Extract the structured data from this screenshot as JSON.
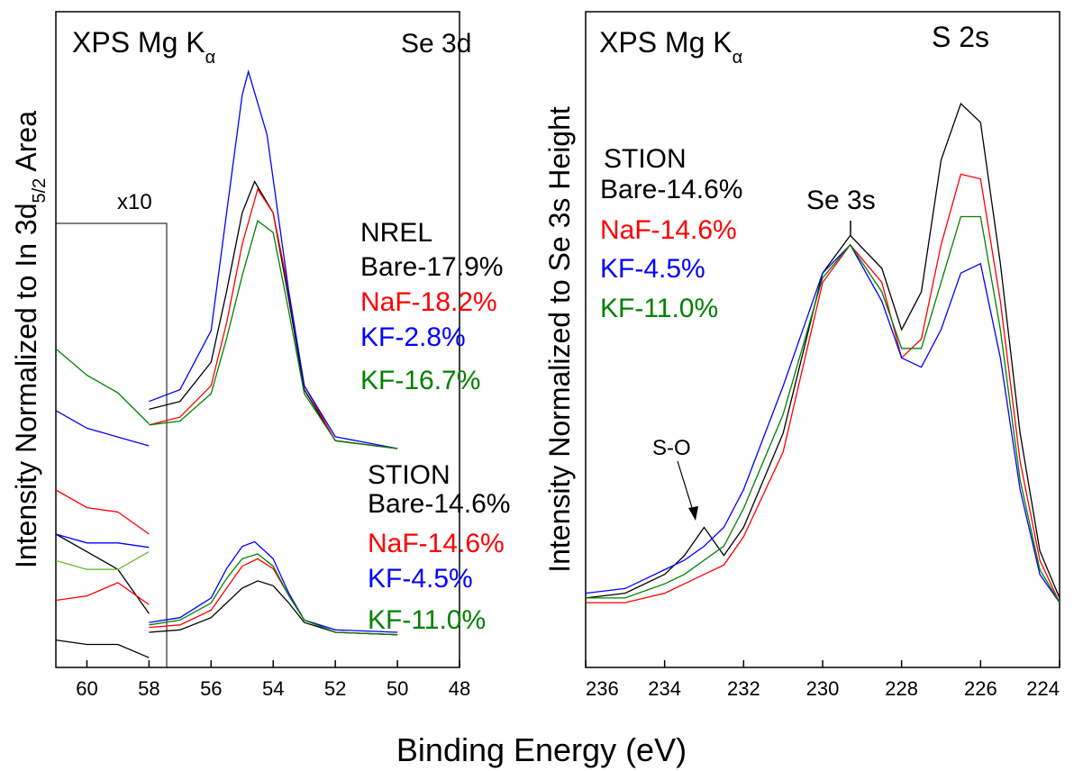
{
  "figure": {
    "xlabel": "Binding Energy (eV)"
  },
  "colors": {
    "black": "#000000",
    "red": "#ff0000",
    "blue": "#0000ff",
    "green": "#008000",
    "lightgreen": "#66bb33"
  },
  "chart_data": [
    {
      "type": "line",
      "panel": "left",
      "title": "Se 3d",
      "source": "XPS Mg K",
      "source_subscript": "α",
      "ylabel": "Intensity Normalized to In 3d",
      "ylabel_subscript": "5/2",
      "ylabel_suffix": " Area",
      "xlim": [
        61,
        48
      ],
      "xticks": [
        "60",
        "58",
        "56",
        "54",
        "52",
        "50",
        "48"
      ],
      "xtick_values": [
        60,
        58,
        56,
        54,
        52,
        50,
        48
      ],
      "grid": false,
      "inset": {
        "label": "x10",
        "xlim": [
          61,
          58
        ]
      },
      "groups": [
        {
          "name": "NREL",
          "entries": [
            "Bare-17.9%",
            "NaF-18.2%",
            "KF-2.8%",
            "KF-16.7%"
          ],
          "colors": [
            "#000000",
            "#ff0000",
            "#0000ff",
            "#008000"
          ],
          "series": [
            {
              "name": "Bare-17.9%",
              "color": "#000000",
              "x": [
                58,
                57,
                56,
                55.5,
                55,
                54.6,
                54,
                53.5,
                53,
                52,
                50
              ],
              "y": [
                0.1,
                0.12,
                0.22,
                0.4,
                0.6,
                0.68,
                0.6,
                0.38,
                0.15,
                0.02,
                0.0
              ]
            },
            {
              "name": "NaF-18.2%",
              "color": "#ff0000",
              "x": [
                58,
                57,
                56,
                55.5,
                55,
                54.5,
                54,
                53.5,
                53,
                52,
                50
              ],
              "y": [
                0.06,
                0.08,
                0.16,
                0.32,
                0.52,
                0.66,
                0.6,
                0.4,
                0.16,
                0.02,
                0.0
              ]
            },
            {
              "name": "KF-2.8%",
              "color": "#0000ff",
              "x": [
                58,
                57,
                56,
                55.5,
                55,
                54.8,
                54.2,
                53.5,
                53,
                52,
                50
              ],
              "y": [
                0.12,
                0.15,
                0.3,
                0.6,
                0.9,
                0.96,
                0.8,
                0.4,
                0.16,
                0.03,
                0.0
              ]
            },
            {
              "name": "KF-16.7%",
              "color": "#008000",
              "x": [
                58,
                57,
                56,
                55.5,
                55,
                54.5,
                54,
                53.5,
                53,
                52,
                50
              ],
              "y": [
                0.06,
                0.07,
                0.14,
                0.28,
                0.44,
                0.58,
                0.55,
                0.35,
                0.14,
                0.02,
                0.0
              ]
            }
          ],
          "inset_series": [
            {
              "color": "#008000",
              "x": [
                61,
                60,
                59,
                58
              ],
              "y": [
                0.72,
                0.66,
                0.62,
                0.55
              ]
            },
            {
              "color": "#0000ff",
              "x": [
                61,
                60,
                59,
                58
              ],
              "y": [
                0.58,
                0.54,
                0.52,
                0.5
              ]
            },
            {
              "color": "#ff0000",
              "x": [
                61,
                60,
                59,
                58
              ],
              "y": [
                0.4,
                0.36,
                0.35,
                0.3
              ]
            },
            {
              "color": "#000000",
              "x": [
                61,
                60,
                59,
                58
              ],
              "y": [
                0.3,
                0.26,
                0.22,
                0.12
              ]
            }
          ]
        },
        {
          "name": "STION",
          "entries": [
            "Bare-14.6%",
            "NaF-14.6%",
            "KF-4.5%",
            "KF-11.0%"
          ],
          "colors": [
            "#000000",
            "#ff0000",
            "#0000ff",
            "#008000"
          ],
          "series": [
            {
              "name": "Bare-14.6%",
              "color": "#000000",
              "x": [
                58,
                57,
                56,
                55.5,
                55,
                54.5,
                54,
                53.5,
                53,
                52,
                50
              ],
              "y": [
                0.0,
                0.01,
                0.06,
                0.12,
                0.18,
                0.21,
                0.19,
                0.12,
                0.04,
                0.0,
                -0.01
              ]
            },
            {
              "name": "NaF-14.6%",
              "color": "#ff0000",
              "x": [
                58,
                57,
                56,
                55.5,
                55,
                54.5,
                54,
                53.5,
                53,
                52,
                50
              ],
              "y": [
                0.02,
                0.03,
                0.09,
                0.18,
                0.27,
                0.3,
                0.26,
                0.15,
                0.05,
                0.0,
                -0.01
              ]
            },
            {
              "name": "KF-4.5%",
              "color": "#0000ff",
              "x": [
                58,
                57,
                56,
                55.5,
                55,
                54.6,
                54,
                53.5,
                53,
                52,
                50
              ],
              "y": [
                0.04,
                0.06,
                0.14,
                0.26,
                0.35,
                0.37,
                0.3,
                0.16,
                0.05,
                0.01,
                0.0
              ]
            },
            {
              "name": "KF-11.0%",
              "color": "#008000",
              "x": [
                58,
                57,
                56,
                55.5,
                55,
                54.5,
                54,
                53.5,
                53,
                52,
                50
              ],
              "y": [
                0.03,
                0.05,
                0.12,
                0.22,
                0.3,
                0.32,
                0.27,
                0.15,
                0.05,
                0.0,
                -0.01
              ]
            }
          ],
          "inset_series": [
            {
              "color": "#0000ff",
              "x": [
                61,
                60,
                59,
                58
              ],
              "y": [
                0.3,
                0.28,
                0.28,
                0.27
              ]
            },
            {
              "color": "#66bb33",
              "x": [
                61,
                60,
                59,
                58
              ],
              "y": [
                0.24,
                0.22,
                0.22,
                0.26
              ]
            },
            {
              "color": "#ff0000",
              "x": [
                61,
                60,
                59,
                58
              ],
              "y": [
                0.15,
                0.16,
                0.19,
                0.14
              ]
            },
            {
              "color": "#000000",
              "x": [
                61,
                60,
                59,
                58
              ],
              "y": [
                0.06,
                0.05,
                0.05,
                0.02
              ]
            }
          ]
        }
      ]
    },
    {
      "type": "line",
      "panel": "right",
      "title": "S 2s",
      "source": "XPS Mg K",
      "source_subscript": "α",
      "ylabel": "Intensity Normalized to Se 3s Height",
      "xlim": [
        236,
        224
      ],
      "xticks": [
        "236",
        "234",
        "232",
        "230",
        "228",
        "226",
        "224"
      ],
      "xtick_values": [
        236,
        234,
        232,
        230,
        228,
        226,
        224
      ],
      "grid": false,
      "group": "STION",
      "annotations": [
        {
          "text": "Se 3s",
          "x": 229.3
        },
        {
          "text": "S-O",
          "x": 233.2
        }
      ],
      "series": [
        {
          "name": "Bare-14.6%",
          "color": "#000000",
          "x": [
            236,
            235,
            234,
            233.5,
            233,
            232.5,
            232,
            231,
            230,
            229.3,
            228.5,
            228,
            227.5,
            227,
            226.5,
            226,
            225.5,
            225,
            224.5,
            224
          ],
          "y": [
            0.05,
            0.06,
            0.1,
            0.14,
            0.2,
            0.14,
            0.2,
            0.4,
            0.74,
            0.82,
            0.75,
            0.62,
            0.7,
            0.98,
            1.1,
            1.06,
            0.76,
            0.4,
            0.15,
            0.05
          ]
        },
        {
          "name": "NaF-14.6%",
          "color": "#ff0000",
          "x": [
            236,
            235,
            234,
            233.5,
            233,
            232.5,
            232,
            231,
            230,
            229.3,
            228.5,
            228,
            227.5,
            227,
            226.5,
            226,
            225.5,
            225,
            224.5,
            224
          ],
          "y": [
            0.04,
            0.04,
            0.06,
            0.08,
            0.1,
            0.12,
            0.18,
            0.36,
            0.72,
            0.8,
            0.72,
            0.56,
            0.6,
            0.8,
            0.95,
            0.94,
            0.68,
            0.34,
            0.13,
            0.04
          ]
        },
        {
          "name": "KF-4.5%",
          "color": "#0000ff",
          "x": [
            236,
            235,
            234,
            233.5,
            233,
            232.5,
            232,
            231,
            230,
            229.3,
            228.5,
            228,
            227.5,
            227,
            226.5,
            226,
            225.5,
            225,
            224.5,
            224
          ],
          "y": [
            0.06,
            0.07,
            0.11,
            0.13,
            0.16,
            0.2,
            0.28,
            0.5,
            0.74,
            0.8,
            0.68,
            0.56,
            0.54,
            0.62,
            0.74,
            0.76,
            0.56,
            0.28,
            0.1,
            0.04
          ]
        },
        {
          "name": "KF-11.0%",
          "color": "#008000",
          "x": [
            236,
            235,
            234,
            233.5,
            233,
            232.5,
            232,
            231,
            230,
            229.3,
            228.5,
            228,
            227.5,
            227,
            226.5,
            226,
            225.5,
            225,
            224.5,
            224
          ],
          "y": [
            0.05,
            0.05,
            0.08,
            0.1,
            0.13,
            0.16,
            0.24,
            0.44,
            0.73,
            0.8,
            0.7,
            0.58,
            0.58,
            0.72,
            0.86,
            0.86,
            0.62,
            0.3,
            0.11,
            0.04
          ]
        }
      ]
    }
  ]
}
